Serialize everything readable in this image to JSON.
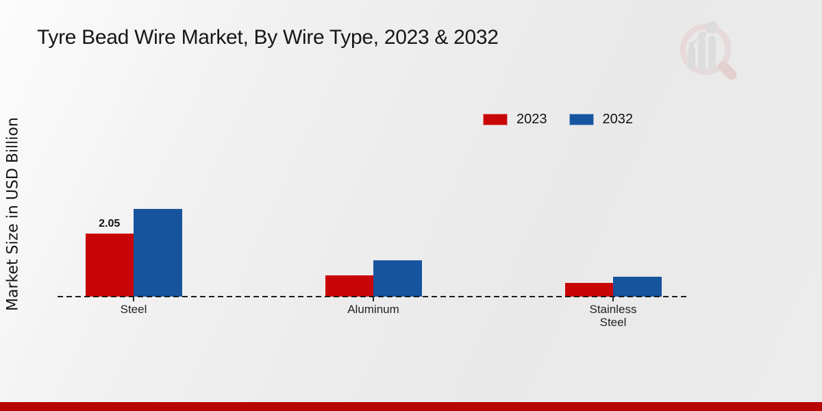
{
  "chart_data": {
    "type": "bar",
    "title": "Tyre Bead Wire Market, By Wire Type, 2023 & 2032",
    "ylabel": "Market Size in USD Billion",
    "xlabel": "",
    "categories": [
      "Steel",
      "Aluminum",
      "Stainless Steel"
    ],
    "series": [
      {
        "name": "2023",
        "color": "#c90607",
        "values": [
          2.05,
          0.69,
          0.45
        ]
      },
      {
        "name": "2032",
        "color": "#17549e",
        "values": [
          2.85,
          1.18,
          0.65
        ]
      }
    ],
    "data_labels": [
      {
        "series_index": 0,
        "category_index": 0,
        "text": "2.05"
      }
    ],
    "legend_position": "top-right",
    "grid": false,
    "baseline_style": "dashed",
    "ylim": [
      0,
      3.2
    ]
  },
  "branding": {
    "logo_name": "market-research-future-logo",
    "accent_bar_color": "#b70401",
    "axis_color": "#1b1b1b"
  }
}
